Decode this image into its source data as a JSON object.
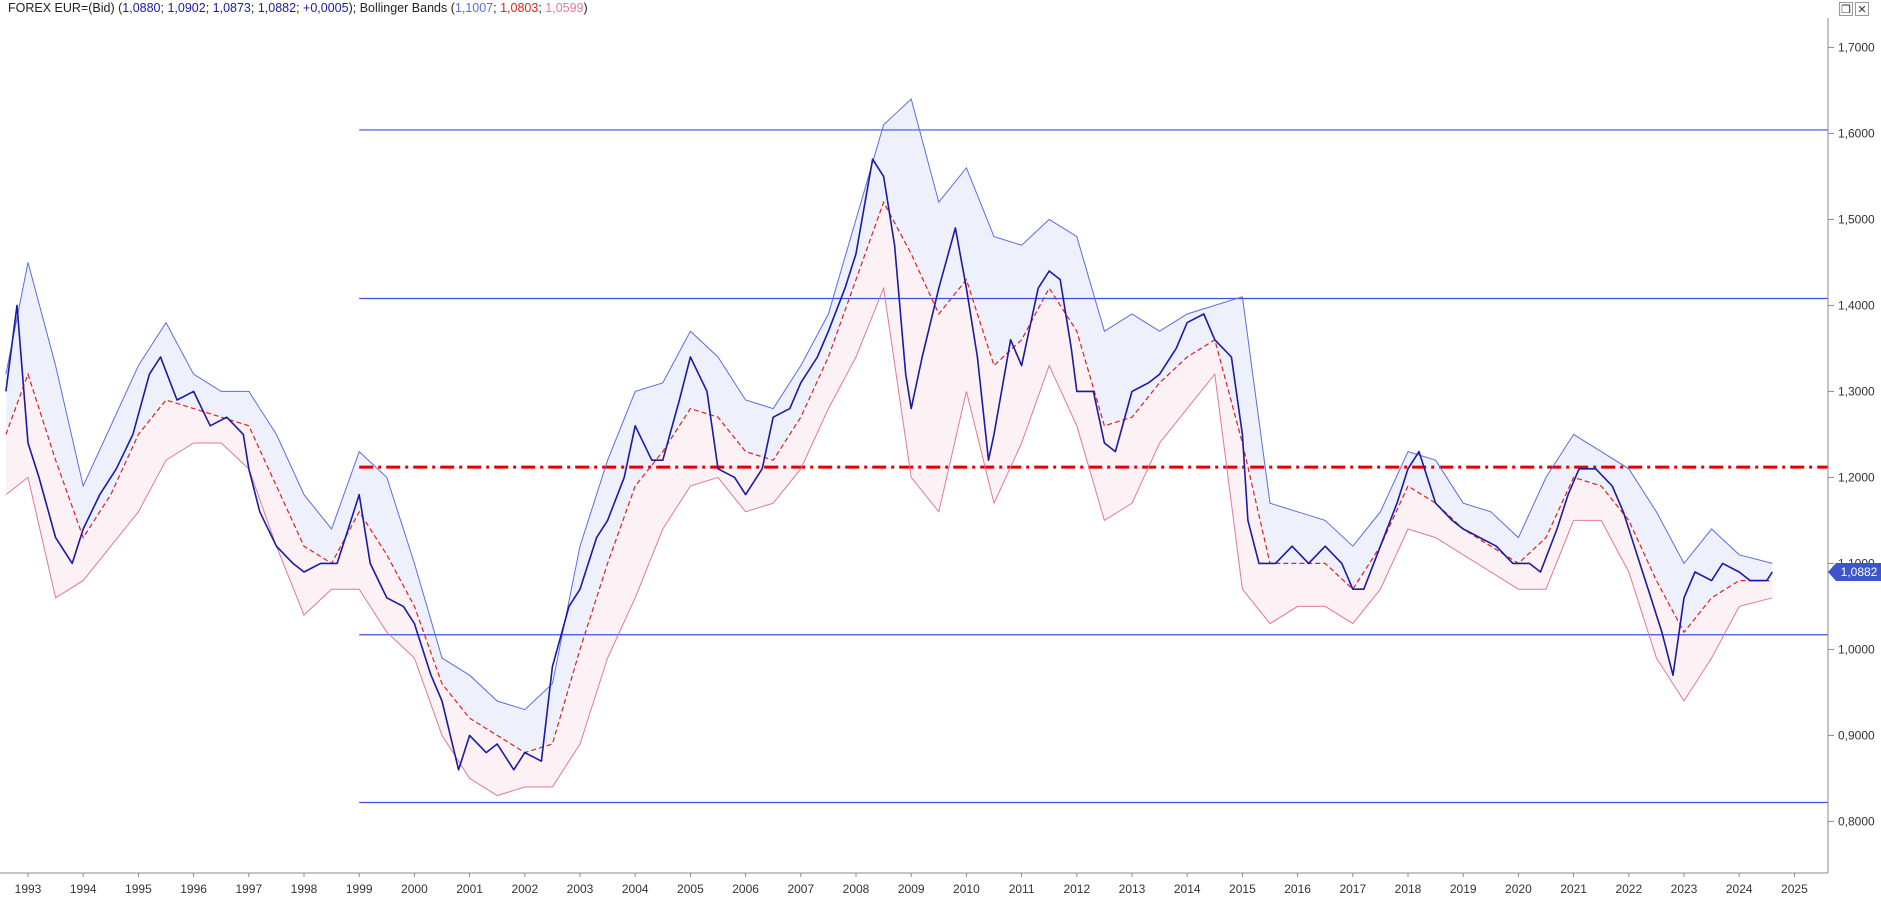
{
  "header": {
    "instrument": "FOREX EUR=(Bid)",
    "ohlc": [
      "1,0880",
      "1,0902",
      "1,0873",
      "1,0882",
      "+0,0005"
    ],
    "indicator": "Bollinger Bands",
    "bands": [
      "1,1007",
      "1,0803",
      "1,0599"
    ]
  },
  "colors": {
    "price": "#1a1aa6",
    "upper": "#5a6ee0",
    "middle": "#e02020",
    "lower": "#e07a95",
    "hline": "#3b4fe0",
    "dashline": "#e00000",
    "upper_fill": "#eef0fc",
    "lower_fill": "#fcf1f4",
    "last_badge": "#3d55cc"
  },
  "window_controls": {
    "restore": "❐",
    "close": "✕"
  },
  "last_price_label": "1,0882",
  "chart_data": {
    "type": "line",
    "title": "",
    "xlabel": "",
    "ylabel": "",
    "xlim": [
      1992.6,
      2025.5
    ],
    "ylim": [
      0.7703,
      1.7216
    ],
    "x_ticks": [
      "1993",
      "1994",
      "1995",
      "1996",
      "1997",
      "1998",
      "1999",
      "2000",
      "2001",
      "2002",
      "2003",
      "2004",
      "2005",
      "2006",
      "2007",
      "2008",
      "2009",
      "2010",
      "2011",
      "2012",
      "2013",
      "2014",
      "2015",
      "2016",
      "2017",
      "2018",
      "2019",
      "2020",
      "2021",
      "2022",
      "2023",
      "2024",
      "2025"
    ],
    "y_ticks": [
      "0,8000",
      "0,9000",
      "1,0000",
      "1,1000",
      "1,2000",
      "1,3000",
      "1,4000",
      "1,5000",
      "1,6000",
      "1,7000"
    ],
    "horizontal_lines": [
      {
        "y": 1.604,
        "x_start": 1999.0,
        "style": "solid"
      },
      {
        "y": 1.408,
        "x_start": 1999.0,
        "style": "solid"
      },
      {
        "y": 1.017,
        "x_start": 1999.0,
        "style": "solid"
      },
      {
        "y": 0.822,
        "x_start": 1999.0,
        "style": "solid"
      },
      {
        "y": 1.212,
        "x_start": 1999.0,
        "style": "dash-dot"
      }
    ],
    "series": [
      {
        "name": "FOREX EUR=(Bid)",
        "x": [
          1992.6,
          1992.8,
          1993.0,
          1993.2,
          1993.5,
          1993.8,
          1994.0,
          1994.3,
          1994.6,
          1994.9,
          1995.2,
          1995.4,
          1995.7,
          1996.0,
          1996.3,
          1996.6,
          1996.9,
          1997.0,
          1997.2,
          1997.5,
          1997.8,
          1998.0,
          1998.3,
          1998.6,
          1998.8,
          1999.0,
          1999.2,
          1999.5,
          1999.8,
          2000.0,
          2000.3,
          2000.5,
          2000.8,
          2001.0,
          2001.3,
          2001.5,
          2001.8,
          2002.0,
          2002.3,
          2002.5,
          2002.8,
          2003.0,
          2003.3,
          2003.5,
          2003.8,
          2004.0,
          2004.3,
          2004.5,
          2004.8,
          2005.0,
          2005.3,
          2005.5,
          2005.8,
          2006.0,
          2006.3,
          2006.5,
          2006.8,
          2007.0,
          2007.3,
          2007.5,
          2007.8,
          2008.0,
          2008.3,
          2008.5,
          2008.7,
          2008.9,
          2009.0,
          2009.2,
          2009.5,
          2009.8,
          2010.0,
          2010.2,
          2010.4,
          2010.5,
          2010.8,
          2011.0,
          2011.3,
          2011.5,
          2011.7,
          2011.9,
          2012.0,
          2012.3,
          2012.5,
          2012.7,
          2013.0,
          2013.3,
          2013.5,
          2013.8,
          2014.0,
          2014.3,
          2014.5,
          2014.8,
          2015.0,
          2015.1,
          2015.3,
          2015.6,
          2015.9,
          2016.2,
          2016.5,
          2016.8,
          2017.0,
          2017.2,
          2017.5,
          2017.8,
          2018.0,
          2018.2,
          2018.5,
          2018.8,
          2019.0,
          2019.3,
          2019.6,
          2019.9,
          2020.2,
          2020.4,
          2020.7,
          2020.9,
          2021.1,
          2021.4,
          2021.7,
          2021.9,
          2022.2,
          2022.4,
          2022.6,
          2022.8,
          2023.0,
          2023.2,
          2023.5,
          2023.7,
          2024.0,
          2024.2,
          2024.5,
          2024.6
        ],
        "values": [
          1.3,
          1.4,
          1.24,
          1.2,
          1.13,
          1.1,
          1.14,
          1.18,
          1.21,
          1.25,
          1.32,
          1.34,
          1.29,
          1.3,
          1.26,
          1.27,
          1.25,
          1.21,
          1.16,
          1.12,
          1.1,
          1.09,
          1.1,
          1.1,
          1.14,
          1.18,
          1.1,
          1.06,
          1.05,
          1.03,
          0.97,
          0.94,
          0.86,
          0.9,
          0.88,
          0.89,
          0.86,
          0.88,
          0.87,
          0.98,
          1.05,
          1.07,
          1.13,
          1.15,
          1.2,
          1.26,
          1.22,
          1.22,
          1.29,
          1.34,
          1.3,
          1.21,
          1.2,
          1.18,
          1.21,
          1.27,
          1.28,
          1.31,
          1.34,
          1.37,
          1.42,
          1.46,
          1.57,
          1.55,
          1.47,
          1.32,
          1.28,
          1.34,
          1.42,
          1.49,
          1.42,
          1.34,
          1.22,
          1.25,
          1.36,
          1.33,
          1.42,
          1.44,
          1.43,
          1.35,
          1.3,
          1.3,
          1.24,
          1.23,
          1.3,
          1.31,
          1.32,
          1.35,
          1.38,
          1.39,
          1.36,
          1.34,
          1.25,
          1.15,
          1.1,
          1.1,
          1.12,
          1.1,
          1.12,
          1.1,
          1.07,
          1.07,
          1.12,
          1.17,
          1.21,
          1.23,
          1.17,
          1.15,
          1.14,
          1.13,
          1.12,
          1.1,
          1.1,
          1.09,
          1.14,
          1.18,
          1.21,
          1.21,
          1.19,
          1.16,
          1.1,
          1.06,
          1.02,
          0.97,
          1.06,
          1.09,
          1.08,
          1.1,
          1.09,
          1.08,
          1.08,
          1.09
        ]
      },
      {
        "name": "Bollinger Bands upper",
        "x": [
          1992.6,
          1993.0,
          1993.5,
          1994.0,
          1994.5,
          1995.0,
          1995.5,
          1996.0,
          1996.5,
          1997.0,
          1997.5,
          1998.0,
          1998.5,
          1999.0,
          1999.5,
          2000.0,
          2000.5,
          2001.0,
          2001.5,
          2002.0,
          2002.5,
          2003.0,
          2003.5,
          2004.0,
          2004.5,
          2005.0,
          2005.5,
          2006.0,
          2006.5,
          2007.0,
          2007.5,
          2008.0,
          2008.5,
          2009.0,
          2009.5,
          2010.0,
          2010.5,
          2011.0,
          2011.5,
          2012.0,
          2012.5,
          2013.0,
          2013.5,
          2014.0,
          2014.5,
          2015.0,
          2015.5,
          2016.0,
          2016.5,
          2017.0,
          2017.5,
          2018.0,
          2018.5,
          2019.0,
          2019.5,
          2020.0,
          2020.5,
          2021.0,
          2021.5,
          2022.0,
          2022.5,
          2023.0,
          2023.5,
          2024.0,
          2024.6
        ],
        "values": [
          1.32,
          1.45,
          1.33,
          1.19,
          1.26,
          1.33,
          1.38,
          1.32,
          1.3,
          1.3,
          1.25,
          1.18,
          1.14,
          1.23,
          1.2,
          1.1,
          0.99,
          0.97,
          0.94,
          0.93,
          0.96,
          1.12,
          1.22,
          1.3,
          1.31,
          1.37,
          1.34,
          1.29,
          1.28,
          1.33,
          1.39,
          1.5,
          1.61,
          1.64,
          1.52,
          1.56,
          1.48,
          1.47,
          1.5,
          1.48,
          1.37,
          1.39,
          1.37,
          1.39,
          1.4,
          1.41,
          1.17,
          1.16,
          1.15,
          1.12,
          1.16,
          1.23,
          1.22,
          1.17,
          1.16,
          1.13,
          1.2,
          1.25,
          1.23,
          1.21,
          1.16,
          1.1,
          1.14,
          1.11,
          1.1
        ]
      },
      {
        "name": "Bollinger Bands middle",
        "x": [
          1992.6,
          1993.0,
          1993.5,
          1994.0,
          1994.5,
          1995.0,
          1995.5,
          1996.0,
          1996.5,
          1997.0,
          1997.5,
          1998.0,
          1998.5,
          1999.0,
          1999.5,
          2000.0,
          2000.5,
          2001.0,
          2001.5,
          2002.0,
          2002.5,
          2003.0,
          2003.5,
          2004.0,
          2004.5,
          2005.0,
          2005.5,
          2006.0,
          2006.5,
          2007.0,
          2007.5,
          2008.0,
          2008.5,
          2009.0,
          2009.5,
          2010.0,
          2010.5,
          2011.0,
          2011.5,
          2012.0,
          2012.5,
          2013.0,
          2013.5,
          2014.0,
          2014.5,
          2015.0,
          2015.5,
          2016.0,
          2016.5,
          2017.0,
          2017.5,
          2018.0,
          2018.5,
          2019.0,
          2019.5,
          2020.0,
          2020.5,
          2021.0,
          2021.5,
          2022.0,
          2022.5,
          2023.0,
          2023.5,
          2024.0,
          2024.6
        ],
        "values": [
          1.25,
          1.32,
          1.22,
          1.13,
          1.18,
          1.25,
          1.29,
          1.28,
          1.27,
          1.26,
          1.19,
          1.12,
          1.1,
          1.16,
          1.11,
          1.05,
          0.96,
          0.92,
          0.9,
          0.88,
          0.89,
          1.0,
          1.1,
          1.19,
          1.23,
          1.28,
          1.27,
          1.23,
          1.22,
          1.27,
          1.34,
          1.43,
          1.52,
          1.46,
          1.39,
          1.43,
          1.33,
          1.36,
          1.42,
          1.37,
          1.26,
          1.27,
          1.31,
          1.34,
          1.36,
          1.24,
          1.1,
          1.1,
          1.1,
          1.07,
          1.12,
          1.19,
          1.17,
          1.14,
          1.12,
          1.1,
          1.13,
          1.2,
          1.19,
          1.15,
          1.08,
          1.02,
          1.06,
          1.08,
          1.08
        ]
      },
      {
        "name": "Bollinger Bands lower",
        "x": [
          1992.6,
          1993.0,
          1993.5,
          1994.0,
          1994.5,
          1995.0,
          1995.5,
          1996.0,
          1996.5,
          1997.0,
          1997.5,
          1998.0,
          1998.5,
          1999.0,
          1999.5,
          2000.0,
          2000.5,
          2001.0,
          2001.5,
          2002.0,
          2002.5,
          2003.0,
          2003.5,
          2004.0,
          2004.5,
          2005.0,
          2005.5,
          2006.0,
          2006.5,
          2007.0,
          2007.5,
          2008.0,
          2008.5,
          2009.0,
          2009.5,
          2010.0,
          2010.5,
          2011.0,
          2011.5,
          2012.0,
          2012.5,
          2013.0,
          2013.5,
          2014.0,
          2014.5,
          2015.0,
          2015.5,
          2016.0,
          2016.5,
          2017.0,
          2017.5,
          2018.0,
          2018.5,
          2019.0,
          2019.5,
          2020.0,
          2020.5,
          2021.0,
          2021.5,
          2022.0,
          2022.5,
          2023.0,
          2023.5,
          2024.0,
          2024.6
        ],
        "values": [
          1.18,
          1.2,
          1.06,
          1.08,
          1.12,
          1.16,
          1.22,
          1.24,
          1.24,
          1.21,
          1.12,
          1.04,
          1.07,
          1.07,
          1.02,
          0.99,
          0.9,
          0.85,
          0.83,
          0.84,
          0.84,
          0.89,
          0.99,
          1.06,
          1.14,
          1.19,
          1.2,
          1.16,
          1.17,
          1.21,
          1.28,
          1.34,
          1.42,
          1.2,
          1.16,
          1.3,
          1.17,
          1.24,
          1.33,
          1.26,
          1.15,
          1.17,
          1.24,
          1.28,
          1.32,
          1.07,
          1.03,
          1.05,
          1.05,
          1.03,
          1.07,
          1.14,
          1.13,
          1.11,
          1.09,
          1.07,
          1.07,
          1.15,
          1.15,
          1.09,
          0.99,
          0.94,
          0.99,
          1.05,
          1.06
        ]
      }
    ]
  }
}
